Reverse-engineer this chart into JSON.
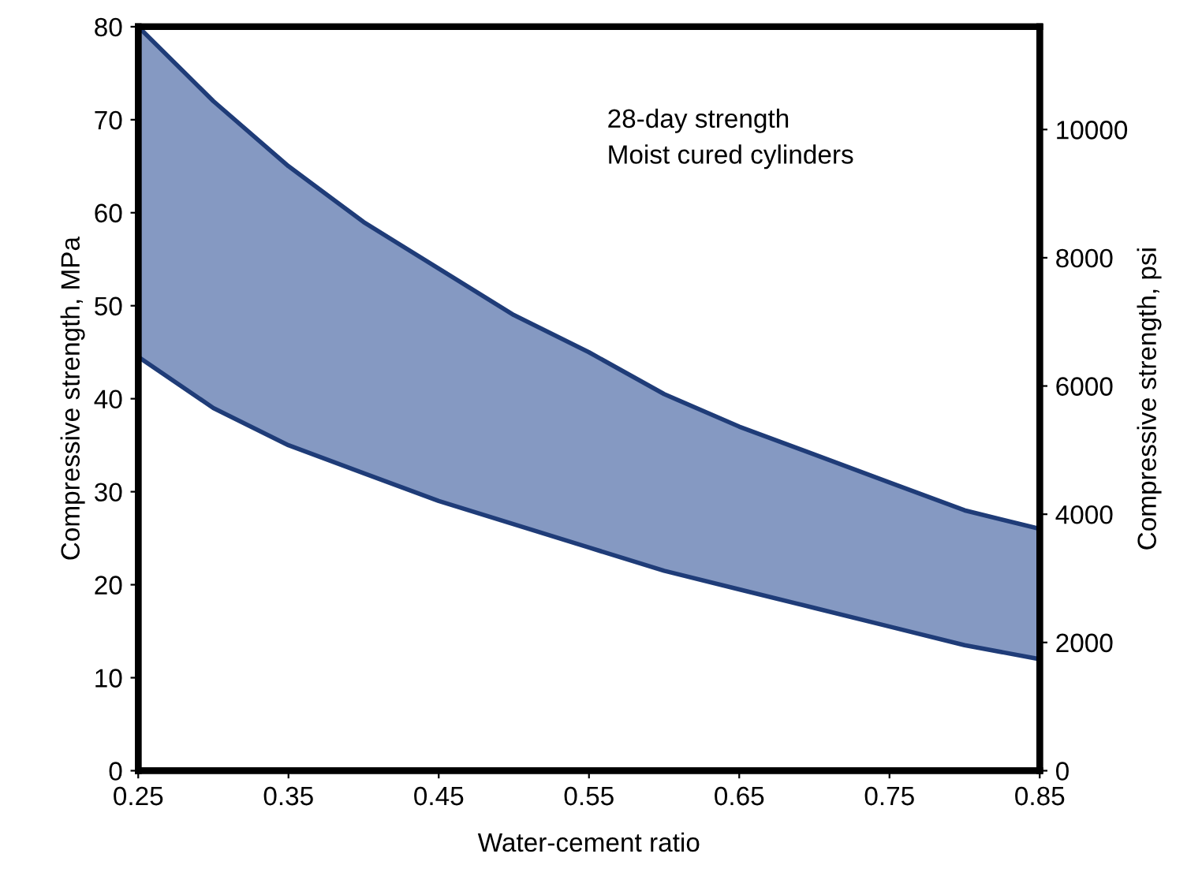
{
  "chart_data": {
    "type": "line",
    "xlabel": "Water-cement ratio",
    "ylabel": "Compressive strength, MPa",
    "y2label": "Compressive strength, psi",
    "annotations": [
      "28-day strength\nMoist cured cylinders"
    ],
    "x": [
      0.25,
      0.3,
      0.35,
      0.4,
      0.45,
      0.5,
      0.55,
      0.6,
      0.65,
      0.7,
      0.75,
      0.8,
      0.85
    ],
    "series": [
      {
        "color": "#1f3c78",
        "values": [
          80,
          72,
          65,
          59,
          54,
          49,
          45,
          40.5,
          37,
          34,
          31,
          28,
          26
        ],
        "upper": [
          80,
          72,
          65,
          59,
          54,
          49,
          45,
          40.5,
          37,
          34,
          31,
          28,
          26
        ],
        "lower": [
          44.5,
          39,
          35,
          32,
          29,
          26.5,
          24,
          21.5,
          19.5,
          17.5,
          15.5,
          13.5,
          12
        ]
      },
      {
        "color": "#1f3c78",
        "values": [
          44.5,
          39,
          35,
          32,
          29,
          26.5,
          24,
          21.5,
          19.5,
          17.5,
          15.5,
          13.5,
          12
        ]
      }
    ],
    "xlim": [
      0.25,
      0.85
    ],
    "xticks": [
      0.25,
      0.35,
      0.45,
      0.55,
      0.65,
      0.75,
      0.85
    ],
    "ylim": [
      0,
      80
    ],
    "yticks": [
      0,
      10,
      20,
      30,
      40,
      50,
      60,
      70,
      80
    ],
    "y2lim": [
      0,
      11603
    ],
    "y2ticks": [
      0,
      2000,
      4000,
      6000,
      8000,
      10000
    ],
    "grid": false,
    "legend": false
  }
}
